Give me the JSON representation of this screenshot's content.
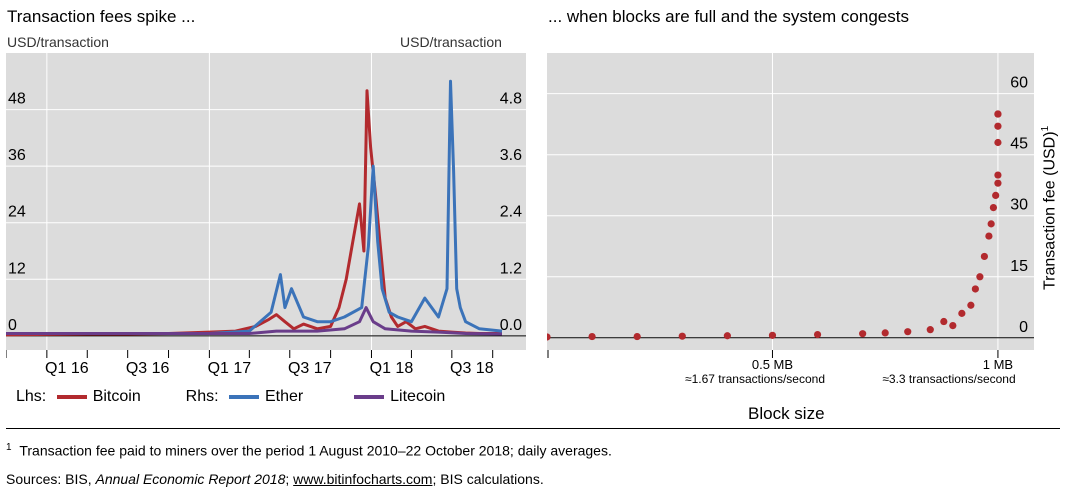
{
  "left_panel": {
    "title": "Transaction fees spike ...",
    "unit_left": "USD/transaction",
    "unit_right": "USD/transaction"
  },
  "right_panel": {
    "title": "... when blocks are full and the system congests",
    "y_axis_label": "Transaction fee (USD)",
    "y_axis_label_sup": "1",
    "x_axis_label": "Block size",
    "tick_labels": [
      {
        "label": "0.5 MB",
        "sub": "≈1.67 transactions/second"
      },
      {
        "label": "1 MB",
        "sub": "≈3.3 transactions/second"
      }
    ]
  },
  "legend": {
    "lhs_label": "Lhs:",
    "rhs_label": "Rhs:",
    "items": [
      {
        "name": "Bitcoin",
        "color": "#b22a2e"
      },
      {
        "name": "Ether",
        "color": "#3b73b9"
      },
      {
        "name": "Litecoin",
        "color": "#6a3d8a"
      }
    ]
  },
  "footnote": {
    "marker": "1",
    "text": "Transaction fee paid to miners over the period 1 August 2010–22 October 2018; daily averages."
  },
  "sources": {
    "prefix": "Sources: BIS, ",
    "report": "Annual Economic Report 2018",
    "sep": "; ",
    "link": "www.bitinfocharts.com",
    "suffix": "; BIS calculations."
  },
  "colors": {
    "panel_bg": "#dcdcdc",
    "grid": "#ffffff",
    "bitcoin": "#b22a2e",
    "ether": "#3b73b9",
    "litecoin": "#6a3d8a"
  },
  "chart_data": [
    {
      "type": "line",
      "x_ticks": [
        "Q1 16",
        "Q3 16",
        "Q1 17",
        "Q3 17",
        "Q1 18",
        "Q3 18"
      ],
      "y_left": {
        "range": [
          -3,
          60
        ],
        "ticks": [
          0,
          12,
          24,
          36,
          48
        ]
      },
      "y_right": {
        "range": [
          -0.3,
          6.0
        ],
        "ticks": [
          "0.0",
          "1.2",
          "2.4",
          "3.6",
          "4.8"
        ]
      },
      "series": [
        {
          "name": "Bitcoin",
          "axis": "left",
          "x": [
            "2015-10-01",
            "2016-01-01",
            "2016-04-01",
            "2016-07-01",
            "2016-10-01",
            "2017-01-01",
            "2017-03-01",
            "2017-04-15",
            "2017-05-15",
            "2017-06-01",
            "2017-06-20",
            "2017-07-10",
            "2017-08-01",
            "2017-09-01",
            "2017-10-01",
            "2017-10-20",
            "2017-11-05",
            "2017-11-20",
            "2017-12-05",
            "2017-12-15",
            "2017-12-22",
            "2017-12-30",
            "2018-01-10",
            "2018-01-20",
            "2018-02-01",
            "2018-02-15",
            "2018-03-01",
            "2018-03-20",
            "2018-04-10",
            "2018-05-01",
            "2018-06-01",
            "2018-07-01",
            "2018-08-01",
            "2018-09-01",
            "2018-10-22"
          ],
          "values": [
            0.2,
            0.3,
            0.4,
            0.4,
            0.5,
            0.8,
            1.0,
            2.0,
            3.5,
            4.5,
            3.0,
            1.5,
            2.5,
            1.5,
            2.0,
            6.0,
            12.0,
            20.0,
            28.0,
            18.0,
            52.0,
            40.0,
            30.0,
            20.0,
            8.0,
            4.0,
            2.0,
            3.0,
            1.5,
            2.0,
            1.0,
            0.8,
            0.6,
            0.5,
            0.5
          ]
        },
        {
          "name": "Ether",
          "axis": "right",
          "x": [
            "2015-10-01",
            "2016-07-01",
            "2017-01-01",
            "2017-04-01",
            "2017-05-20",
            "2017-06-10",
            "2017-06-20",
            "2017-07-05",
            "2017-08-01",
            "2017-09-01",
            "2017-10-01",
            "2017-11-01",
            "2017-12-10",
            "2017-12-25",
            "2018-01-05",
            "2018-01-15",
            "2018-01-25",
            "2018-02-10",
            "2018-03-01",
            "2018-04-01",
            "2018-05-01",
            "2018-06-01",
            "2018-06-20",
            "2018-06-28",
            "2018-07-05",
            "2018-07-12",
            "2018-07-20",
            "2018-08-01",
            "2018-09-01",
            "2018-10-22"
          ],
          "values": [
            0.05,
            0.05,
            0.05,
            0.1,
            0.5,
            1.3,
            0.6,
            1.0,
            0.4,
            0.3,
            0.3,
            0.4,
            0.6,
            1.9,
            3.6,
            2.0,
            1.0,
            0.5,
            0.4,
            0.3,
            0.8,
            0.4,
            1.0,
            5.4,
            3.5,
            1.0,
            0.6,
            0.3,
            0.15,
            0.1
          ]
        },
        {
          "name": "Litecoin",
          "axis": "right",
          "x": [
            "2015-10-01",
            "2016-07-01",
            "2017-01-01",
            "2017-04-01",
            "2017-06-01",
            "2017-09-01",
            "2017-11-01",
            "2017-12-05",
            "2017-12-20",
            "2018-01-05",
            "2018-02-01",
            "2018-04-01",
            "2018-06-01",
            "2018-08-01",
            "2018-10-22"
          ],
          "values": [
            0.05,
            0.05,
            0.05,
            0.05,
            0.1,
            0.1,
            0.15,
            0.3,
            0.6,
            0.3,
            0.15,
            0.1,
            0.08,
            0.05,
            0.04
          ]
        }
      ]
    },
    {
      "type": "scatter",
      "x_label": "Block size",
      "y_label": "Transaction fee (USD)",
      "x_range": [
        0,
        1.08
      ],
      "x_ticks": [
        "0.5 MB",
        "1 MB"
      ],
      "y_range": [
        -3,
        70
      ],
      "y_ticks": [
        0,
        15,
        30,
        45,
        60
      ],
      "series": [
        {
          "name": "Bitcoin",
          "x": [
            0.0,
            0.1,
            0.2,
            0.3,
            0.4,
            0.5,
            0.6,
            0.7,
            0.75,
            0.8,
            0.85,
            0.88,
            0.9,
            0.92,
            0.94,
            0.95,
            0.96,
            0.97,
            0.98,
            0.985,
            0.99,
            0.995,
            1.0,
            1.0,
            1.0,
            1.0,
            1.0,
            1.0
          ],
          "values": [
            0.2,
            0.3,
            0.3,
            0.4,
            0.5,
            0.6,
            0.8,
            1.0,
            1.2,
            1.5,
            2.0,
            4.0,
            3.0,
            6.0,
            8.0,
            12.0,
            15.0,
            20.0,
            25.0,
            28.0,
            32.0,
            35.0,
            38.0,
            40.0,
            48.0,
            55.0,
            52.0,
            55.0
          ]
        }
      ]
    }
  ]
}
